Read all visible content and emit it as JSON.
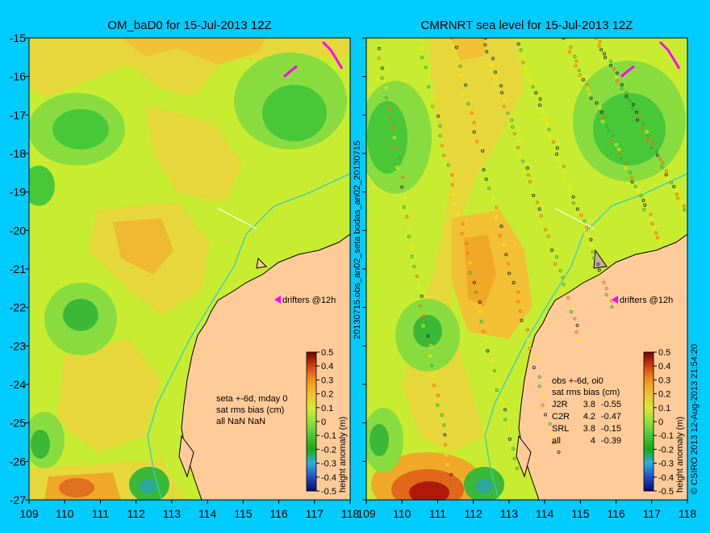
{
  "left_panel": {
    "title": "OM_baD0 for 15-Jul-2013 12Z",
    "info_lines": [
      "seta +-6d, mday 0",
      "sat rms bias (cm)",
      "all NaN NaN"
    ],
    "drifters_label": "drifters @12h"
  },
  "right_panel": {
    "title": "CMRNRT sea level  for 15-Jul-2013 12Z",
    "info_lines": [
      "obs +-6d, oi0",
      "sat rms bias (cm)"
    ],
    "stats": [
      {
        "name": "J2R",
        "rms": "3.8",
        "bias": "-0.55"
      },
      {
        "name": "C2R",
        "rms": "4.2",
        "bias": "-0.47"
      },
      {
        "name": "SRL",
        "rms": "3.8",
        "bias": "-0.15"
      },
      {
        "name": "all",
        "rms": "4",
        "bias": "-0.39"
      }
    ],
    "drifters_label": "drifters @12h"
  },
  "middle_label": "20130715.obs_an02_seta   bodas_an02_20130715",
  "credit": "© CSIRO 2013  12-Aug-2013 21:54:20",
  "axes": {
    "lon_ticks": [
      "109",
      "110",
      "111",
      "112",
      "113",
      "114",
      "115",
      "116",
      "117",
      "118"
    ],
    "lat_ticks": [
      "-15",
      "-16",
      "-17",
      "-18",
      "-19",
      "-20",
      "-21",
      "-22",
      "-23",
      "-24",
      "-25",
      "-26",
      "-27"
    ],
    "lon_range": [
      109,
      118
    ],
    "lat_range": [
      -27,
      -15
    ]
  },
  "colorbar": {
    "label": "height anomaly (m)",
    "ticks": [
      "0.5",
      "0.4",
      "0.3",
      "0.2",
      "0.1",
      "0",
      "-0.1",
      "-0.2",
      "-0.3",
      "-0.4",
      "-0.5"
    ],
    "colors": [
      "#0a0a6e",
      "#1f4fc8",
      "#2ab0e0",
      "#18a818",
      "#6cd840",
      "#c0ec30",
      "#e8d030",
      "#f0a020",
      "#e06818",
      "#c02010",
      "#7a0000"
    ]
  },
  "colors": {
    "background": "#00ccff",
    "land": "#ffcc99",
    "coast": "#000000",
    "isobath": "#33cccc",
    "drifters": "#ff00ff"
  }
}
